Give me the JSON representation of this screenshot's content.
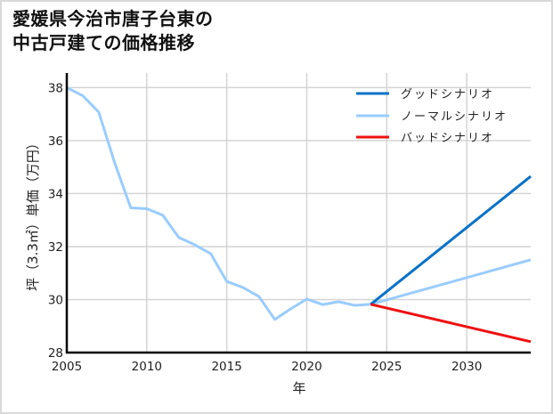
{
  "title_lines": [
    "愛媛県今治市唐子台東の",
    "中古戸建ての価格推移"
  ],
  "chart_data": {
    "type": "line",
    "title": "愛媛県今治市唐子台東の中古戸建ての価格推移",
    "xlabel": "年",
    "ylabel": "坪（3.3㎡）単価（万円）",
    "xlim": [
      2005,
      2034
    ],
    "ylim": [
      28,
      38.55
    ],
    "xticks": [
      2005,
      2010,
      2015,
      2020,
      2025,
      2030
    ],
    "yticks": [
      28,
      30,
      32,
      34,
      36,
      38
    ],
    "grid": true,
    "legend_position": "upper right",
    "series": [
      {
        "name": "グッドシナリオ",
        "color": "#0a72c8",
        "x": [
          2024,
          2034
        ],
        "values": [
          29.82,
          34.65
        ]
      },
      {
        "name": "ノーマルシナリオ",
        "color": "#99ccff",
        "x": [
          2005,
          2006,
          2007,
          2008,
          2009,
          2010,
          2011,
          2012,
          2013,
          2014,
          2015,
          2016,
          2017,
          2018,
          2019,
          2020,
          2021,
          2022,
          2023,
          2024,
          2034
        ],
        "values": [
          38.0,
          37.69,
          37.07,
          35.15,
          33.46,
          33.43,
          33.18,
          32.34,
          32.07,
          31.73,
          30.68,
          30.46,
          30.12,
          29.25,
          29.65,
          30.02,
          29.81,
          29.92,
          29.78,
          29.82,
          31.5
        ]
      },
      {
        "name": "バッドシナリオ",
        "color": "#ee1111",
        "x": [
          2024,
          2034
        ],
        "values": [
          29.82,
          28.41
        ]
      }
    ]
  }
}
